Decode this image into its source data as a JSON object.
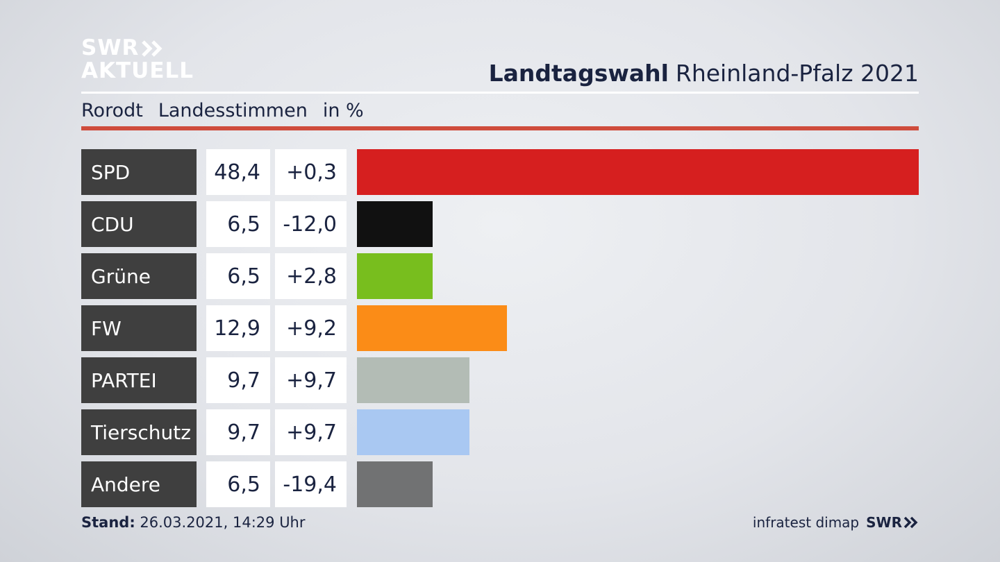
{
  "logo": {
    "line1": "SWR",
    "line2": "AKTUELL",
    "chevron_icon": "double-chevron-right-icon"
  },
  "header": {
    "title_bold": "Landtagswahl",
    "title_rest": "Rheinland-Pfalz 2021",
    "location": "Rorodt",
    "vote_type": "Landesstimmen",
    "unit": "in %"
  },
  "chart_data": {
    "type": "bar",
    "orientation": "horizontal",
    "categories": [
      "SPD",
      "CDU",
      "Grüne",
      "FW",
      "PARTEI",
      "Tierschutz",
      "Andere"
    ],
    "values": [
      48.4,
      6.5,
      6.5,
      12.9,
      9.7,
      9.7,
      6.5
    ],
    "value_labels": [
      "48,4",
      "6,5",
      "6,5",
      "12,9",
      "9,7",
      "9,7",
      "6,5"
    ],
    "diff_labels": [
      "+0,3",
      "-12,0",
      "+2,8",
      "+9,2",
      "+9,7",
      "+9,7",
      "-19,4"
    ],
    "colors": [
      "#d61f1f",
      "#111111",
      "#78be1e",
      "#fb8c17",
      "#b3bcb5",
      "#a9c8f2",
      "#717273"
    ],
    "xlim": [
      0,
      48.4
    ],
    "grid": false,
    "legend": "none"
  },
  "footer": {
    "stand_label": "Stand:",
    "stand_value": "26.03.2021, 14:29 Uhr",
    "source": "infratest dimap",
    "brand": "SWR"
  }
}
